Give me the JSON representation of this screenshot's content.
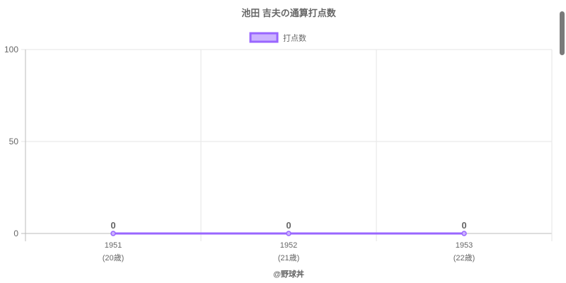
{
  "chart_data": {
    "type": "line",
    "title": "池田 吉夫の通算打点数",
    "categories": [
      "1951",
      "1952",
      "1953"
    ],
    "category_sublabels": [
      "(20歳)",
      "(21歳)",
      "(22歳)"
    ],
    "series": [
      {
        "name": "打点数",
        "values": [
          0,
          0,
          0
        ],
        "color": "#9966ff",
        "fill": "#ccb3ff"
      }
    ],
    "ylim": [
      0,
      100
    ],
    "yticks": [
      0,
      50,
      100
    ],
    "grid": true,
    "legend": "top",
    "data_labels": [
      "0",
      "0",
      "0"
    ],
    "credit": "@野球丼"
  }
}
